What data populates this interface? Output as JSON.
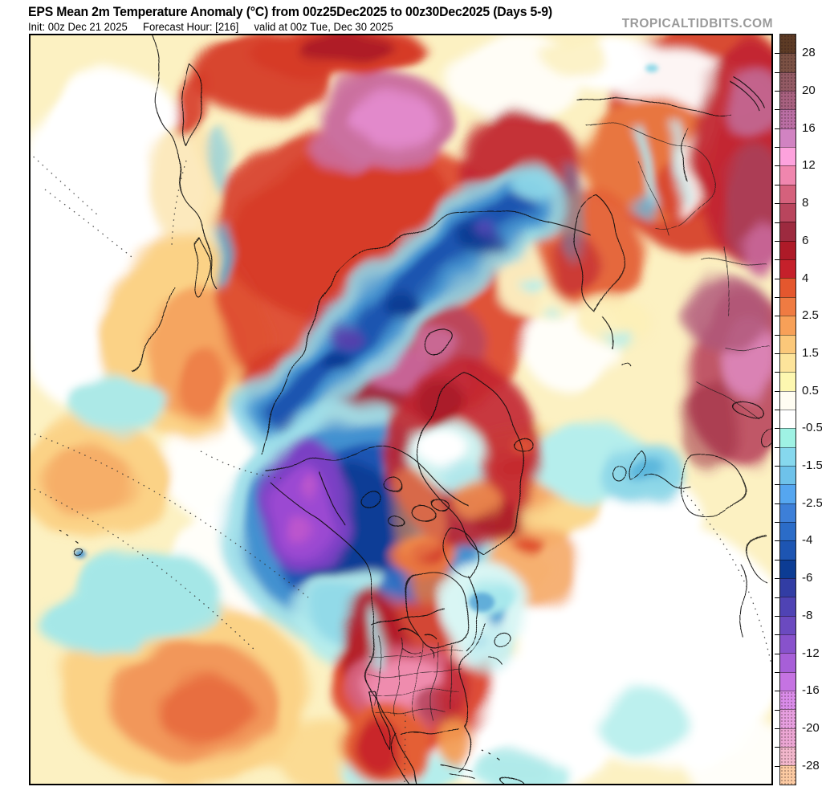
{
  "header": {
    "title": "EPS Mean 2m Temperature Anomaly (°C) from 00z25Dec2025 to 00z30Dec2025 (Days 5-9)",
    "init": "Init: 00z Dec 21 2025",
    "forecast_hour": "Forecast Hour: [216]",
    "valid": "valid at 00z Tue, Dec 30 2025",
    "watermark": "TROPICALTIDBITS.COM"
  },
  "colorbar": {
    "tick_labels": [
      "28",
      "20",
      "16",
      "12",
      "8",
      "6",
      "4",
      "2.5",
      "1.5",
      "0.5",
      "-0.5",
      "-1.5",
      "-2.5",
      "-4",
      "-6",
      "-8",
      "-12",
      "-16",
      "-20",
      "-28"
    ],
    "segment_colors": [
      "#5d3b25",
      "#7b5144",
      "#935a64",
      "#a86180",
      "#ba6ea4",
      "#d183c2",
      "#fda2dd",
      "#f086ae",
      "#d5617c",
      "#b9455d",
      "#9d2a3f",
      "#ae1a28",
      "#c5202b",
      "#e4572e",
      "#ef7b42",
      "#f7a058",
      "#fbc87a",
      "#fde49b",
      "#fdf7b0",
      "#fffdf2",
      "#ffffff",
      "#9ff2e4",
      "#86d8ee",
      "#6ec2ea",
      "#55a6f0",
      "#3d7fd8",
      "#2b6cc8",
      "#1d55b2",
      "#0c3c94",
      "#323da4",
      "#4f43b4",
      "#6b4ac0",
      "#8852cc",
      "#a75fd8",
      "#c573e2",
      "#da8cea",
      "#e79fe0",
      "#eca6d4",
      "#f2b7cc",
      "#fccaa2"
    ],
    "stippled_top_segments": 5,
    "stippled_bottom_segments": 5
  },
  "colors": {
    "frame": "#000000",
    "ocean_white": "#ffffff",
    "ocean_pale_yellow": "#fcf1c2",
    "watermark_gray": "#9a9a9a"
  }
}
